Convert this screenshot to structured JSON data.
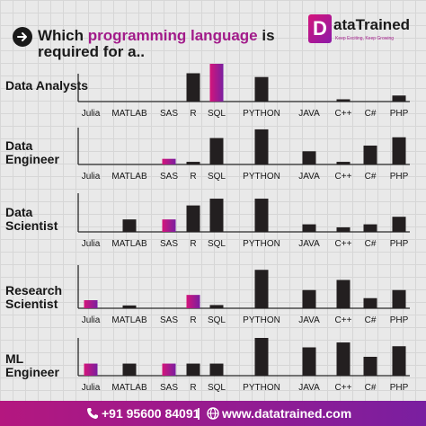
{
  "header": {
    "title_part1": "Which ",
    "title_highlight": "programming language",
    "title_part2": " is",
    "title_line2": "required for a..",
    "logo_letter": "D",
    "logo_text": "ataTrained",
    "logo_tagline": "Keep Exciting, Keep Growing"
  },
  "footer": {
    "phone": "+91 95600 84091",
    "separator": "|",
    "website": "www.datatrained.com"
  },
  "colors": {
    "bar": "#231f20",
    "highlight_start": "#d4147a",
    "highlight_end": "#7a1fa0",
    "axis": "#2a2a2a"
  },
  "chart_data": [
    {
      "type": "bar",
      "title": "Data Analysts",
      "categories": [
        "Julia",
        "MATLAB",
        "SAS",
        "R",
        "SQL",
        "PYTHON",
        "JAVA",
        "C++",
        "C#",
        "PHP"
      ],
      "values": [
        0,
        0,
        0,
        75,
        100,
        65,
        0,
        6,
        0,
        16
      ],
      "highlight": [
        "SQL"
      ]
    },
    {
      "type": "bar",
      "title": "Data Engineer",
      "categories": [
        "Julia",
        "MATLAB",
        "SAS",
        "R",
        "SQL",
        "PYTHON",
        "JAVA",
        "C++",
        "C#",
        "PHP"
      ],
      "values": [
        0,
        0,
        15,
        7,
        70,
        93,
        35,
        7,
        50,
        72
      ],
      "highlight": [
        "SAS"
      ]
    },
    {
      "type": "bar",
      "title": "Data Scientist",
      "categories": [
        "Julia",
        "MATLAB",
        "SAS",
        "R",
        "SQL",
        "PYTHON",
        "JAVA",
        "C++",
        "C#",
        "PHP"
      ],
      "values": [
        0,
        33,
        33,
        70,
        88,
        88,
        20,
        12,
        20,
        40
      ],
      "highlight": [
        "SAS"
      ]
    },
    {
      "type": "bar",
      "title": "Research Scientist",
      "categories": [
        "Julia",
        "MATLAB",
        "SAS",
        "R",
        "SQL",
        "PYTHON",
        "JAVA",
        "C++",
        "C#",
        "PHP"
      ],
      "values": [
        20,
        7,
        0,
        33,
        8,
        95,
        45,
        70,
        25,
        45
      ],
      "highlight": [
        "Julia",
        "R"
      ]
    },
    {
      "type": "bar",
      "title": "ML Engineer",
      "categories": [
        "Julia",
        "MATLAB",
        "SAS",
        "R",
        "SQL",
        "PYTHON",
        "JAVA",
        "C++",
        "C#",
        "PHP"
      ],
      "values": [
        32,
        32,
        32,
        32,
        32,
        100,
        75,
        88,
        50,
        78
      ],
      "highlight": [
        "Julia",
        "SAS"
      ]
    }
  ]
}
